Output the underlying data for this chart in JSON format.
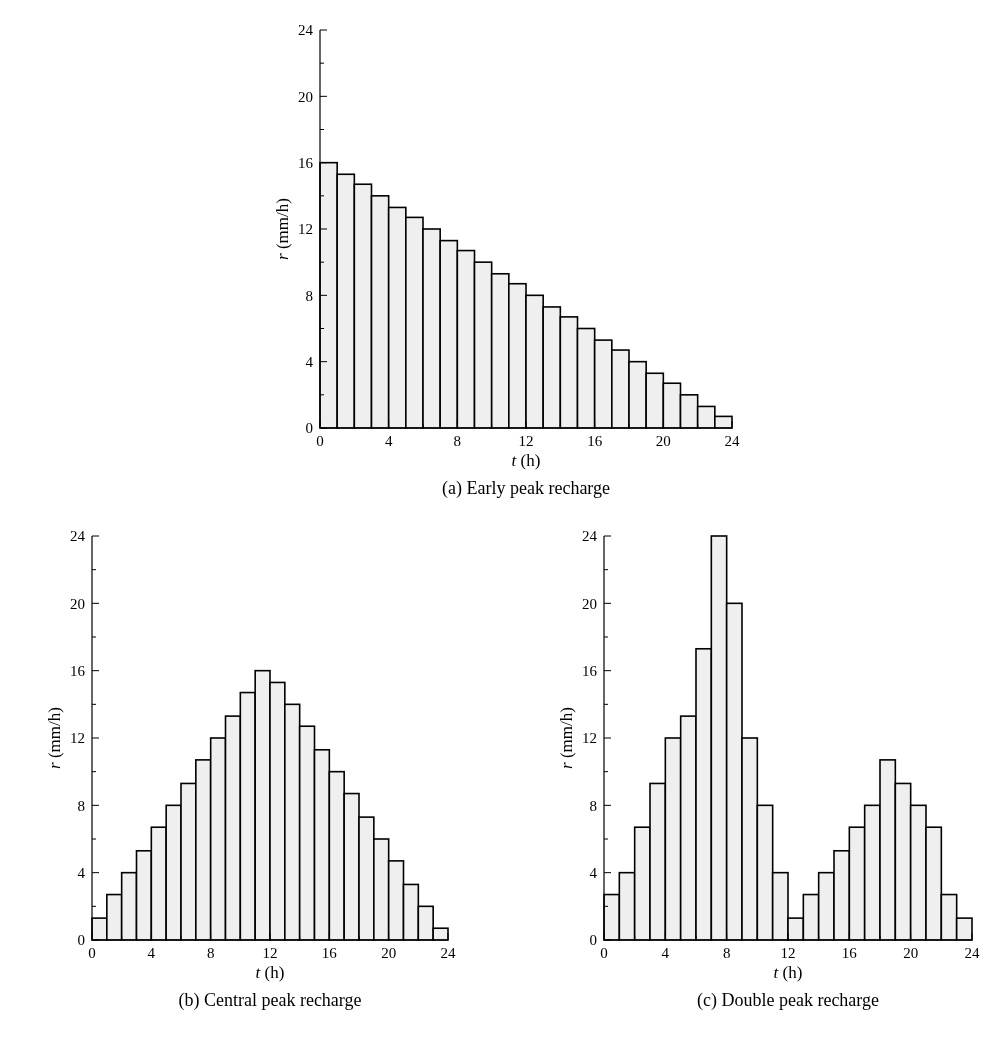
{
  "chart_data": [
    {
      "type": "histogram",
      "title": "(a) Early peak recharge",
      "xlabel": "t (h)",
      "ylabel": "r (mm/h)",
      "color": "#efefef",
      "bins": [
        0,
        1,
        2,
        3,
        4,
        5,
        6,
        7,
        8,
        9,
        10,
        11,
        12,
        13,
        14,
        15,
        16,
        17,
        18,
        19,
        20,
        21,
        22,
        23,
        24
      ],
      "values": [
        16,
        15.3,
        14.7,
        14,
        13.3,
        12.7,
        12,
        11.3,
        10.7,
        10,
        9.3,
        8.7,
        8,
        7.3,
        6.7,
        6,
        5.3,
        4.7,
        4,
        3.3,
        2.7,
        2,
        1.3,
        0.7
      ],
      "xlim": [
        0,
        24
      ],
      "xticks": [
        0,
        {
          "value": 2,
          "label": null
        },
        4,
        {
          "value": 6,
          "label": null
        },
        8,
        {
          "value": 10,
          "label": null
        },
        12,
        {
          "value": 14,
          "label": null
        },
        16,
        {
          "value": 18,
          "label": null
        },
        20,
        {
          "value": 22,
          "label": null
        },
        24
      ],
      "ylim": [
        0,
        24
      ],
      "yticks": [
        0,
        {
          "value": 2,
          "label": null
        },
        4,
        {
          "value": 6,
          "label": null
        },
        8,
        {
          "value": 10,
          "label": null
        },
        12,
        {
          "value": 14,
          "label": null
        },
        16,
        {
          "value": 18,
          "label": null
        },
        20,
        {
          "value": 22,
          "label": null
        },
        24
      ],
      "grid": false
    },
    {
      "type": "histogram",
      "title": "(b) Central peak recharge",
      "xlabel": "t (h)",
      "ylabel": "r (mm/h)",
      "color": "#efefef",
      "bins": [
        0,
        1,
        2,
        3,
        4,
        5,
        6,
        7,
        8,
        9,
        10,
        11,
        12,
        13,
        14,
        15,
        16,
        17,
        18,
        19,
        20,
        21,
        22,
        23,
        24
      ],
      "values": [
        1.3,
        2.7,
        4,
        5.3,
        6.7,
        8,
        9.3,
        10.7,
        12,
        13.3,
        14.7,
        16,
        15.3,
        14,
        12.7,
        11.3,
        10,
        8.7,
        7.3,
        6,
        4.7,
        3.3,
        2,
        0.7
      ],
      "xlim": [
        0,
        24
      ],
      "xticks": [
        0,
        {
          "value": 2,
          "label": null
        },
        4,
        {
          "value": 6,
          "label": null
        },
        8,
        {
          "value": 10,
          "label": null
        },
        12,
        {
          "value": 14,
          "label": null
        },
        16,
        {
          "value": 18,
          "label": null
        },
        20,
        {
          "value": 22,
          "label": null
        },
        24
      ],
      "ylim": [
        0,
        24
      ],
      "yticks": [
        0,
        {
          "value": 2,
          "label": null
        },
        4,
        {
          "value": 6,
          "label": null
        },
        8,
        {
          "value": 10,
          "label": null
        },
        12,
        {
          "value": 14,
          "label": null
        },
        16,
        {
          "value": 18,
          "label": null
        },
        20,
        {
          "value": 22,
          "label": null
        },
        24
      ],
      "grid": false
    },
    {
      "type": "histogram",
      "title": "(c) Double peak recharge",
      "xlabel": "t (h)",
      "ylabel": "r (mm/h)",
      "color": "#efefef",
      "bins": [
        0,
        1,
        2,
        3,
        4,
        5,
        6,
        7,
        8,
        9,
        10,
        11,
        12,
        13,
        14,
        15,
        16,
        17,
        18,
        19,
        20,
        21,
        22,
        23,
        24
      ],
      "values": [
        2.7,
        4,
        6.7,
        9.3,
        12,
        13.3,
        17.3,
        24,
        20,
        12,
        8,
        4,
        1.3,
        2.7,
        4,
        5.3,
        6.7,
        8,
        10.7,
        9.3,
        8,
        6.7,
        2.7,
        1.3
      ],
      "xlim": [
        0,
        24
      ],
      "xticks": [
        0,
        {
          "value": 2,
          "label": null
        },
        4,
        {
          "value": 6,
          "label": null
        },
        8,
        {
          "value": 10,
          "label": null
        },
        12,
        {
          "value": 14,
          "label": null
        },
        16,
        {
          "value": 18,
          "label": null
        },
        20,
        {
          "value": 22,
          "label": null
        },
        24
      ],
      "ylim": [
        0,
        24
      ],
      "yticks": [
        0,
        {
          "value": 2,
          "label": null
        },
        4,
        {
          "value": 6,
          "label": null
        },
        8,
        {
          "value": 10,
          "label": null
        },
        12,
        {
          "value": 14,
          "label": null
        },
        16,
        {
          "value": 18,
          "label": null
        },
        20,
        {
          "value": 22,
          "label": null
        },
        24
      ],
      "grid": false
    }
  ]
}
